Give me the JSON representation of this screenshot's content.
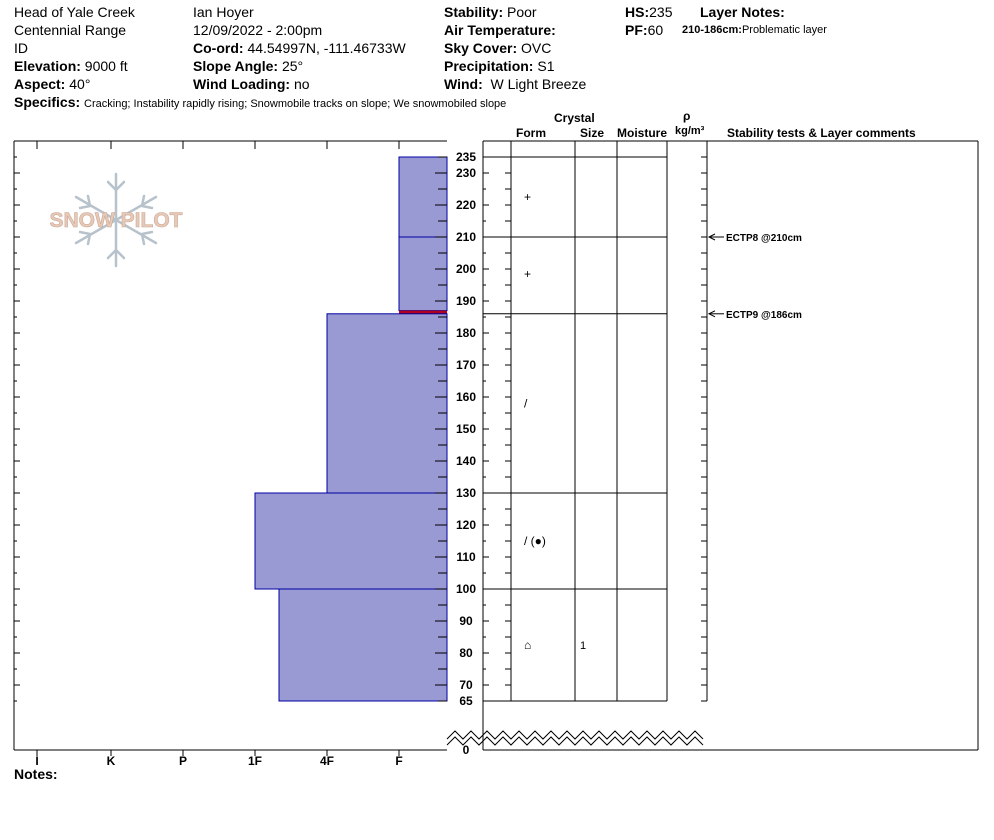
{
  "header": {
    "location": "Head of Yale Creek",
    "range": "Centennial Range",
    "state": "ID",
    "elevation_label": "Elevation:",
    "elevation_value": "9000 ft",
    "aspect_label": "Aspect:",
    "aspect_value": "40°",
    "observer": "Ian Hoyer",
    "datetime": "12/09/2022 - 2:00pm",
    "coord_label": "Co-ord:",
    "coord_value": "44.54997N, -111.46733W",
    "slope_label": "Slope Angle:",
    "slope_value": "25°",
    "wind_loading_label": "Wind Loading:",
    "wind_loading_value": "no",
    "stability_label": "Stability:",
    "stability_value": "Poor",
    "air_temp_label": "Air Temperature:",
    "air_temp_value": "",
    "sky_label": "Sky Cover:",
    "sky_value": "OVC",
    "precip_label": "Precipitation:",
    "precip_value": "S1",
    "wind_label": "Wind:",
    "wind_value": "W Light Breeze",
    "hs_label": "HS:",
    "hs_value": "235",
    "pf_label": "PF:",
    "pf_value": "60",
    "layer_notes_label": "Layer Notes:",
    "layer_note_range": "210-186cm:",
    "layer_note_text": "Problematic layer",
    "specifics_label": "Specifics:",
    "specifics_value": "Cracking; Instability rapidly rising; Snowmobile tracks on slope; We snowmobiled slope"
  },
  "logo": {
    "text": "SNOW PILOT",
    "color": "#e8c9b8",
    "flake_color": "#b7c2cc"
  },
  "columns": {
    "crystal": "Crystal",
    "form": "Form",
    "size": "Size",
    "moisture": "Moisture",
    "rho": "ρ",
    "density_unit": "kg/m³",
    "stability": "Stability tests & Layer comments"
  },
  "hardness_labels": [
    "I",
    "K",
    "P",
    "1F",
    "4F",
    "F"
  ],
  "notes_label": "Notes:",
  "chart_data": {
    "type": "snow_profile",
    "hs_cm": 235,
    "depth_axis": {
      "ticks": [
        70,
        80,
        90,
        100,
        110,
        120,
        130,
        140,
        150,
        160,
        170,
        180,
        190,
        200,
        210,
        220,
        230
      ],
      "extra_labels": [
        65,
        235,
        0
      ]
    },
    "hardness_scale": [
      "I",
      "K",
      "P",
      "1F",
      "4F",
      "F"
    ],
    "layers": [
      {
        "top": 235,
        "bottom": 210,
        "hardness": "F",
        "form": "+",
        "size": ""
      },
      {
        "top": 210,
        "bottom": 187,
        "hardness": "F",
        "form": "+",
        "size": ""
      },
      {
        "top": 187,
        "bottom": 186,
        "hardness": "F",
        "form": "",
        "size": "",
        "highlight": true
      },
      {
        "top": 186,
        "bottom": 130,
        "hardness": "4F",
        "form": "/",
        "size": ""
      },
      {
        "top": 130,
        "bottom": 100,
        "hardness": "1F",
        "form": "/ (●)",
        "size": ""
      },
      {
        "top": 100,
        "bottom": 65,
        "hardness": "1F+",
        "form": "⌂",
        "size": "1"
      }
    ],
    "stability_tests": [
      {
        "depth": 210,
        "label": "ECTP8 @210cm"
      },
      {
        "depth": 186,
        "label": "ECTP9 @186cm"
      }
    ],
    "colors": {
      "fill": "#9999d4",
      "edge": "#0000a0",
      "weak": "#b00020"
    }
  }
}
